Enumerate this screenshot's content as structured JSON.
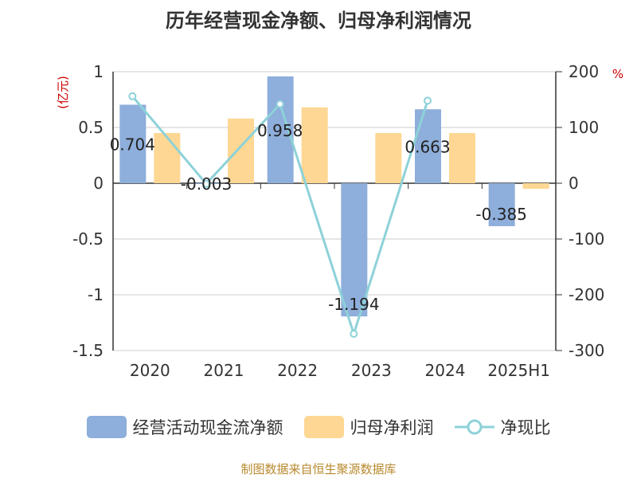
{
  "chart_data": {
    "type": "bar",
    "title": "历年经营现金净额、归母净利润情况",
    "categories": [
      "2020",
      "2021",
      "2022",
      "2023",
      "2024",
      "2025H1"
    ],
    "series": [
      {
        "name": "经营活动现金流净额",
        "kind": "bar",
        "axis": "left",
        "color": "#8eaedb",
        "values": [
          0.704,
          -0.003,
          0.958,
          -1.194,
          0.663,
          -0.385
        ],
        "value_labels": [
          "0.704",
          "-0.003",
          "0.958",
          "-1.194",
          "0.663",
          "-0.385"
        ]
      },
      {
        "name": "归母净利润",
        "kind": "bar",
        "axis": "left",
        "color": "#fdd793",
        "values": [
          0.45,
          0.58,
          0.68,
          0.45,
          0.45,
          -0.05
        ]
      },
      {
        "name": "净现比",
        "kind": "line",
        "axis": "right",
        "color": "#8dd2d8",
        "values": [
          156,
          -1,
          142,
          -270,
          148,
          null
        ]
      }
    ],
    "left_axis": {
      "unit": "(亿元)",
      "range": [
        -1.5,
        1
      ],
      "ticks": [
        1,
        0.5,
        0,
        -0.5,
        -1,
        -1.5
      ],
      "tick_labels": [
        "1",
        "0.5",
        "0",
        "-0.5",
        "-1",
        "-1.5"
      ]
    },
    "right_axis": {
      "unit": "%",
      "range": [
        -300,
        200
      ],
      "ticks": [
        200,
        100,
        0,
        -100,
        -200,
        -300
      ],
      "tick_labels": [
        "200",
        "100",
        "0",
        "-100",
        "-200",
        "-300"
      ]
    },
    "grid": true,
    "legend_position": "bottom"
  },
  "source": "制图数据来自恒生聚源数据库"
}
